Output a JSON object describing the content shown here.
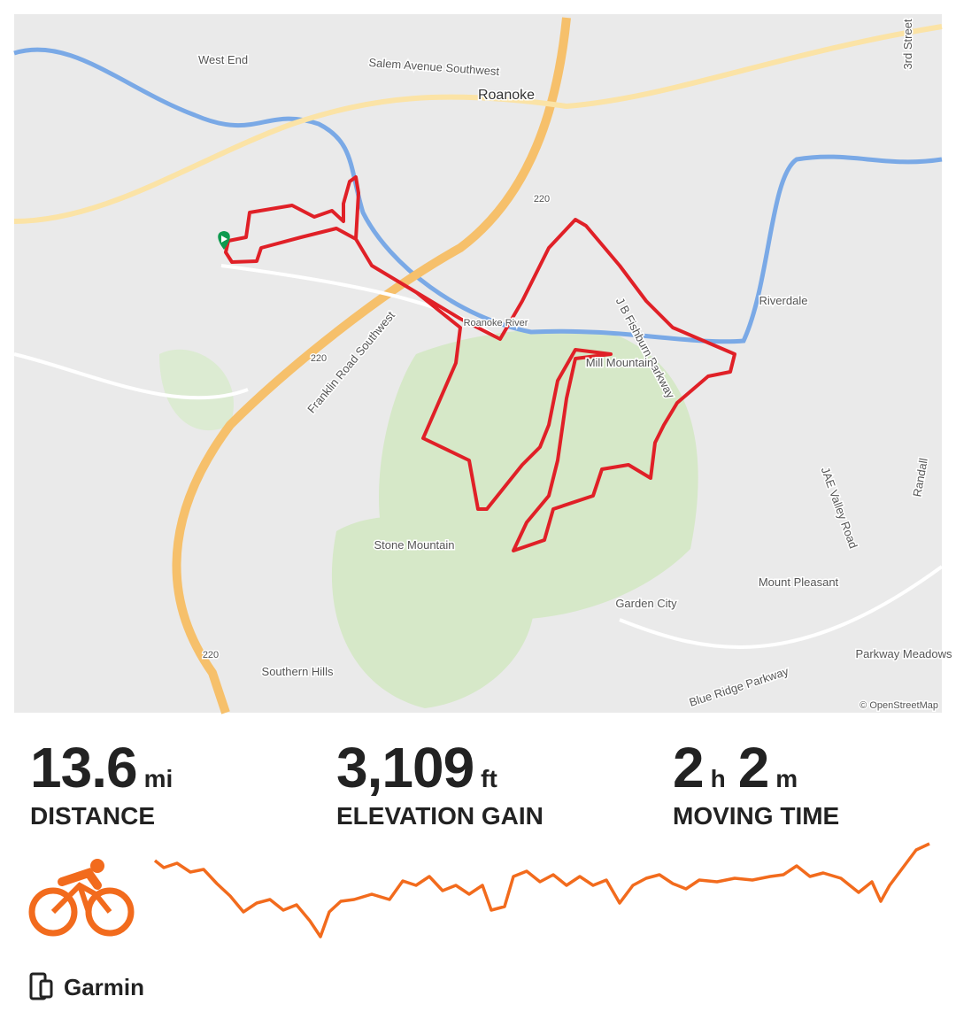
{
  "map": {
    "labels": [
      "West End",
      "Salem Avenue Southwest",
      "Roanoke",
      "220",
      "220",
      "220",
      "Riverdale",
      "J B Fishburn Parkway",
      "Mill Mountain",
      "Franklin Road Southwest",
      "Stone Mountain",
      "Garden City",
      "Mount Pleasant",
      "Southern Hills",
      "Blue Ridge Parkway",
      "Parkway Meadows",
      "JAE Valley Road",
      "3rd Street",
      "Randall",
      "Roanoke River"
    ],
    "attribution": "© OpenStreetMap"
  },
  "stats": [
    {
      "parts": [
        {
          "value": "13.6",
          "unit": "mi"
        }
      ],
      "label": "DISTANCE"
    },
    {
      "parts": [
        {
          "value": "3,109",
          "unit": "ft"
        }
      ],
      "label": "ELEVATION GAIN"
    },
    {
      "parts": [
        {
          "value": "2",
          "unit": "h"
        },
        {
          "value": "2",
          "unit": "m"
        }
      ],
      "label": "MOVING TIME"
    }
  ],
  "source": "Garmin"
}
